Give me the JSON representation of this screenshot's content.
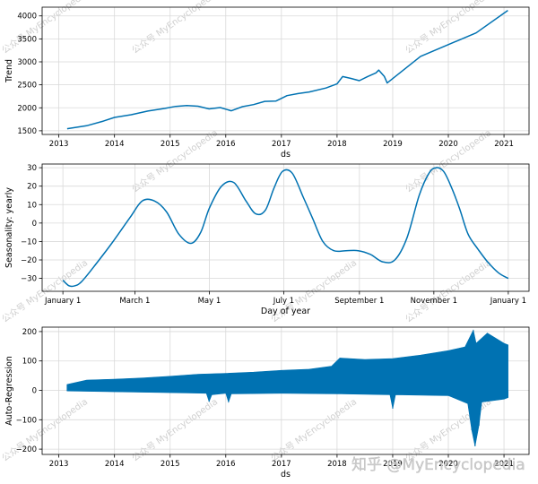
{
  "watermark": {
    "short_text": "公众号 MyEncyclopedia",
    "long_text": "知乎 @MyEncyclopedia"
  },
  "colors": {
    "line": "#0072B2",
    "fill": "#0072B2"
  },
  "chart_data": [
    {
      "type": "line",
      "name": "trend",
      "xlabel": "ds",
      "ylabel": "Trend",
      "xlim": [
        2012.7,
        2021.45
      ],
      "ylim": [
        1420,
        4190
      ],
      "xticks": [
        2013,
        2014,
        2015,
        2016,
        2017,
        2018,
        2019,
        2020,
        2021
      ],
      "xtick_labels": [
        "2013",
        "2014",
        "2015",
        "2016",
        "2017",
        "2018",
        "2019",
        "2020",
        "2021"
      ],
      "yticks": [
        1500,
        2000,
        2500,
        3000,
        3500,
        4000
      ],
      "ytick_labels": [
        "1500",
        "2000",
        "2500",
        "3000",
        "3500",
        "4000"
      ],
      "x": [
        2013.15,
        2013.5,
        2013.8,
        2014.0,
        2014.3,
        2014.6,
        2014.9,
        2015.1,
        2015.3,
        2015.5,
        2015.7,
        2015.9,
        2016.1,
        2016.3,
        2016.5,
        2016.7,
        2016.9,
        2017.1,
        2017.3,
        2017.5,
        2017.8,
        2018.0,
        2018.1,
        2018.25,
        2018.4,
        2018.55,
        2018.7,
        2018.75,
        2018.85,
        2018.9,
        2019.5,
        2020.5,
        2021.07
      ],
      "y": [
        1545,
        1610,
        1710,
        1790,
        1850,
        1930,
        1985,
        2030,
        2050,
        2035,
        1975,
        2005,
        1935,
        2025,
        2070,
        2140,
        2145,
        2265,
        2310,
        2345,
        2430,
        2520,
        2680,
        2640,
        2590,
        2680,
        2760,
        2820,
        2680,
        2540,
        3120,
        3630,
        4120
      ]
    },
    {
      "type": "line",
      "name": "seasonality-yearly",
      "xlabel": "Day of year",
      "ylabel": "Seasonality: yearly",
      "xlim": [
        -17,
        382
      ],
      "ylim": [
        -37,
        32
      ],
      "xticks": [
        0,
        59,
        120,
        181,
        243,
        304,
        365
      ],
      "xtick_labels": [
        "January 1",
        "March 1",
        "May 1",
        "July 1",
        "September 1",
        "November 1",
        "January 1"
      ],
      "yticks": [
        -30,
        -20,
        -10,
        0,
        10,
        20,
        30
      ],
      "ytick_labels": [
        "−30",
        "−20",
        "−10",
        "0",
        "10",
        "20",
        "30"
      ],
      "x": [
        0,
        5,
        10,
        15,
        25,
        40,
        55,
        65,
        75,
        85,
        95,
        105,
        113,
        120,
        130,
        140,
        150,
        158,
        166,
        173,
        180,
        188,
        197,
        205,
        213,
        222,
        232,
        242,
        252,
        262,
        272,
        282,
        292,
        300,
        306,
        312,
        318,
        325,
        332,
        340,
        348,
        357,
        365
      ],
      "y": [
        -31,
        -34,
        -34,
        -32,
        -24,
        -11,
        3,
        12,
        12,
        6,
        -6,
        -11,
        -5,
        8,
        20,
        22,
        12,
        5,
        7,
        19,
        28,
        27,
        14,
        2,
        -10,
        -15,
        -15,
        -15,
        -17,
        -21,
        -20,
        -8,
        15,
        27,
        30,
        28,
        20,
        8,
        -6,
        -14,
        -21,
        -27,
        -30
      ]
    },
    {
      "type": "area",
      "name": "auto-regression",
      "xlabel": "ds",
      "ylabel": "Auto-Regression",
      "xlim": [
        2012.7,
        2021.45
      ],
      "ylim": [
        -218,
        215
      ],
      "xticks": [
        2013,
        2014,
        2015,
        2016,
        2017,
        2018,
        2019,
        2020,
        2021
      ],
      "xtick_labels": [
        "2013",
        "2014",
        "2015",
        "2016",
        "2017",
        "2018",
        "2019",
        "2020",
        "2021"
      ],
      "yticks": [
        -200,
        -100,
        0,
        100,
        200
      ],
      "ytick_labels": [
        "−200",
        "−100",
        "0",
        "100",
        "200"
      ],
      "upper_envelope": {
        "x": [
          2013.15,
          2013.5,
          2014.0,
          2014.5,
          2015.0,
          2015.5,
          2016.0,
          2016.5,
          2017.0,
          2017.5,
          2017.9,
          2018.05,
          2018.5,
          2019.0,
          2019.5,
          2020.0,
          2020.3,
          2020.45,
          2020.5,
          2020.7,
          2021.0,
          2021.07
        ],
        "y": [
          20,
          35,
          38,
          42,
          48,
          55,
          58,
          62,
          68,
          72,
          82,
          110,
          105,
          108,
          120,
          135,
          148,
          205,
          160,
          195,
          160,
          155
        ]
      },
      "lower_envelope": {
        "x": [
          2013.15,
          2014.0,
          2015.0,
          2015.65,
          2015.7,
          2015.75,
          2016.0,
          2016.05,
          2016.1,
          2017.0,
          2018.0,
          2018.95,
          2019.0,
          2019.05,
          2020.0,
          2020.35,
          2020.42,
          2020.48,
          2020.55,
          2020.6,
          2021.0,
          2021.07
        ],
        "y": [
          -2,
          -5,
          -8,
          -10,
          -38,
          -15,
          -10,
          -40,
          -12,
          -10,
          -12,
          -15,
          -62,
          -15,
          -18,
          -45,
          -135,
          -190,
          -120,
          -40,
          -30,
          -25
        ]
      }
    }
  ]
}
